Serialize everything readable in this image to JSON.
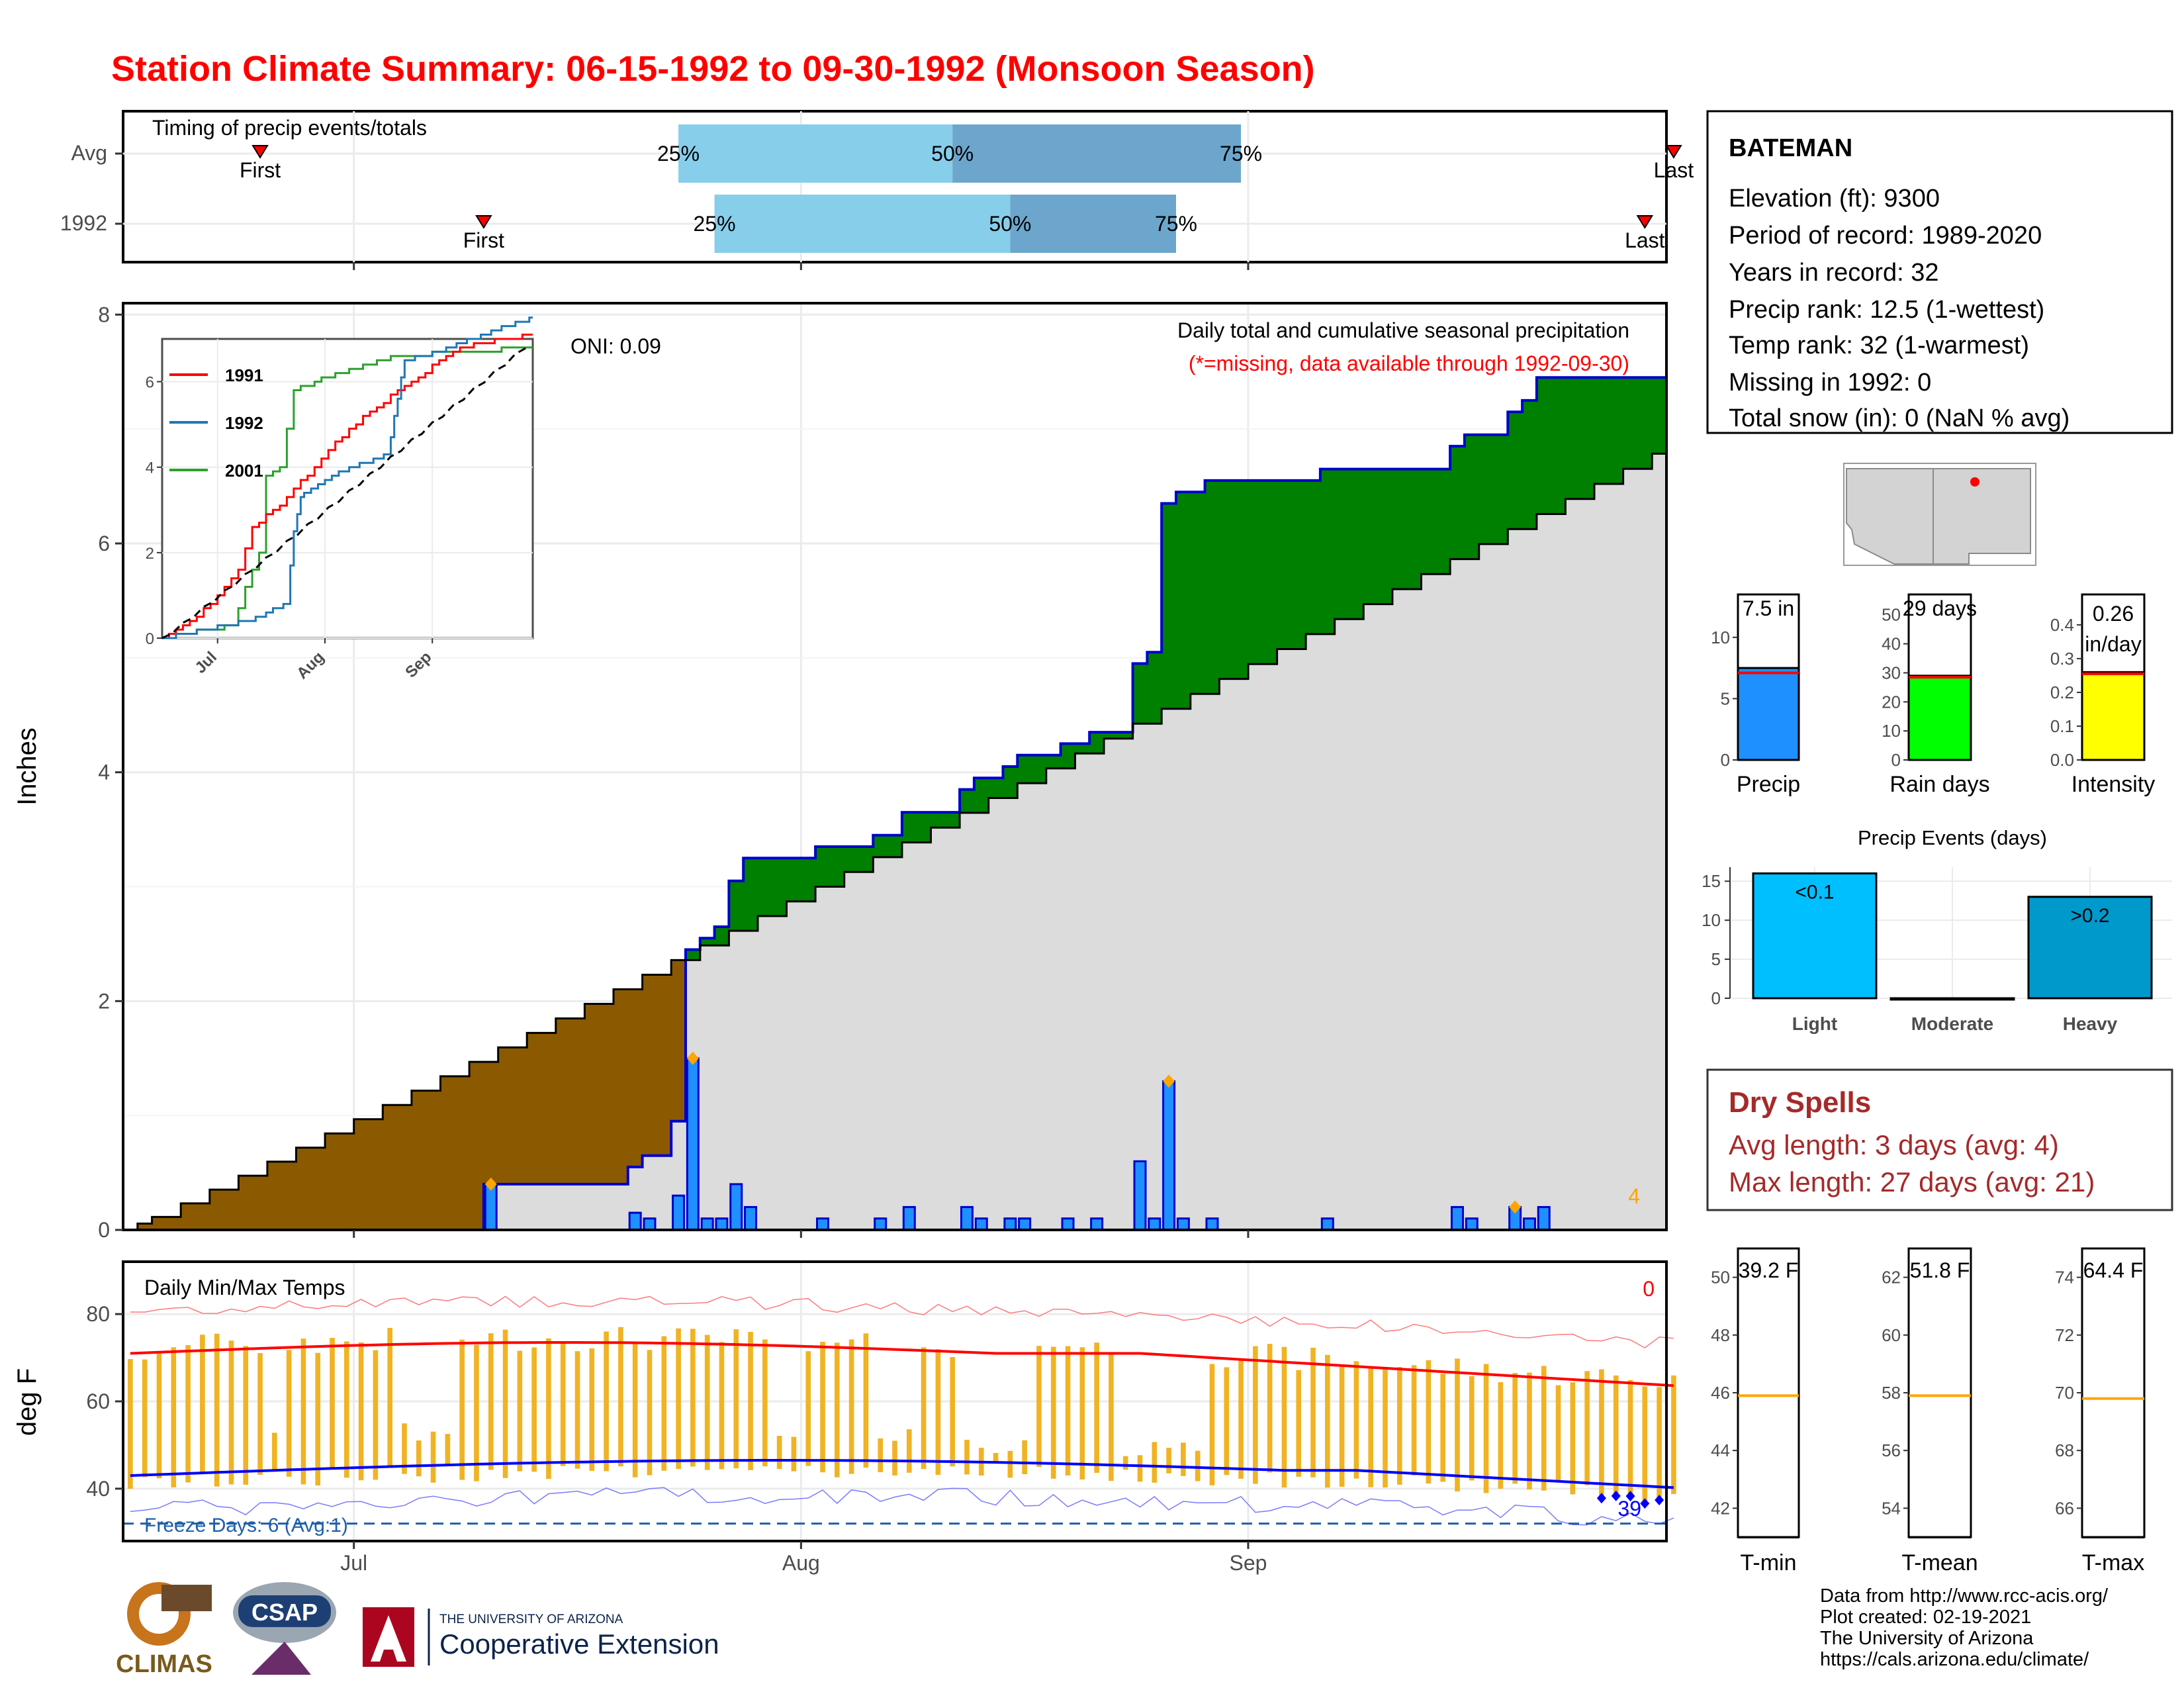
{
  "title": "Station Climate Summary: 06-15-1992 to 09-30-1992 (Monsoon Season)",
  "colors": {
    "title": "#ff0000",
    "precip_fill": "#1e90ff",
    "precip_line": "#0000cd",
    "surplus": "#008000",
    "deficit": "#8b5a00",
    "cumulative_avg": "#dcdcdc",
    "raindays": "#00ff00",
    "intensity": "#ffff00",
    "light": "#00bfff",
    "heavy": "#0099cc",
    "temp_bar": "#f0b323",
    "tmax": "#ff0000",
    "tmin": "#0000ff",
    "spell": "#a52a2a",
    "orange": "#ffa500"
  },
  "timing_panel": {
    "title": "Timing of precip events/totals",
    "rows": [
      {
        "label": "Avg",
        "first_label": "First",
        "last_label": "Last",
        "first_day": 9.5,
        "last_day": 107.5,
        "p25_day": 38.5,
        "p50_day": 57.5,
        "p75_day": 77.5,
        "p25": "25%",
        "p50": "50%",
        "p75": "75%"
      },
      {
        "label": "1992",
        "first_label": "First",
        "last_label": "Last",
        "first_day": 25,
        "last_day": 105.5,
        "p25_day": 41,
        "p50_day": 61.5,
        "p75_day": 73,
        "p25": "25%",
        "p50": "50%",
        "p75": "75%"
      }
    ]
  },
  "precip_panel": {
    "ylabel": "Inches",
    "yticks": [
      "0",
      "2",
      "4",
      "6",
      "8"
    ],
    "caption_line1": "Daily total and cumulative seasonal precipitation",
    "caption_line2": "(*=missing, data available through 1992-09-30)",
    "oni": "ONI: 0.09",
    "extreme_count": "4"
  },
  "inset": {
    "legend": [
      "1991",
      "1992",
      "2001"
    ],
    "legend_colors": [
      "#ff0000",
      "#1f77b4",
      "#2ca02c"
    ],
    "yticks": [
      "0",
      "2",
      "4",
      "6"
    ],
    "xticks": [
      "Jul",
      "Aug",
      "Sep"
    ]
  },
  "temp_panel": {
    "title": "Daily Min/Max Temps",
    "ylabel": "deg F",
    "yticks": [
      "40",
      "60",
      "80"
    ],
    "freeze": "Freeze Days: 6 (Avg:1)",
    "hot_count": "0",
    "cold_count": "39"
  },
  "x_axis": {
    "ticks": [
      "Jul",
      "Aug",
      "Sep"
    ]
  },
  "station": {
    "name": "BATEMAN",
    "lines": [
      "Elevation (ft): 9300",
      "Period of record: 1989-2020",
      "Years in record: 32",
      "Precip rank: 12.5 (1-wettest)",
      "Temp rank: 32 (1-warmest)",
      "Missing in 1992: 0",
      "Total snow (in): 0 (NaN % avg)"
    ]
  },
  "mini_bars": [
    {
      "label": "Precip",
      "value_text": "7.5 in",
      "value": 7.5,
      "avg": 7.1,
      "ymax": 13.5,
      "yticks": [
        "0",
        "5",
        "10"
      ],
      "tick_values": [
        0,
        5,
        10
      ]
    },
    {
      "label": "Rain days",
      "value_text": "29 days",
      "value": 29,
      "avg": 28.5,
      "ymax": 57,
      "yticks": [
        "0",
        "10",
        "20",
        "30",
        "40",
        "50"
      ],
      "tick_values": [
        0,
        10,
        20,
        30,
        40,
        50
      ]
    },
    {
      "label": "Intensity",
      "value_text": "0.26 in/day",
      "value_line1": "0.26",
      "value_line2": "in/day",
      "value": 0.26,
      "avg": 0.255,
      "ymax": 0.49,
      "yticks": [
        "0.0",
        "0.1",
        "0.2",
        "0.3",
        "0.4"
      ],
      "tick_values": [
        0,
        0.1,
        0.2,
        0.3,
        0.4
      ]
    }
  ],
  "precip_events": {
    "title": "Precip Events (days)",
    "categories": [
      "Light",
      "Moderate",
      "Heavy"
    ],
    "values": [
      16,
      0,
      13
    ],
    "bar_labels": [
      "<0.1",
      "",
      ">0.2"
    ],
    "yticks": [
      "0",
      "5",
      "10",
      "15"
    ]
  },
  "dry_spells": {
    "title": "Dry Spells",
    "avg_length": "Avg length: 3 days (avg: 4)",
    "max_length": "Max length: 27 days (avg: 21)"
  },
  "temp_bars": [
    {
      "label": "T-min",
      "value_text": "39.2 F",
      "value": 39.2,
      "avg": 45.9,
      "ymin": 41,
      "ymax": 51,
      "yticks": [
        "42",
        "44",
        "46",
        "48",
        "50"
      ],
      "tick_values": [
        42,
        44,
        46,
        48,
        50
      ]
    },
    {
      "label": "T-mean",
      "value_text": "51.8 F",
      "value": 51.8,
      "avg": 57.9,
      "ymin": 53,
      "ymax": 63,
      "yticks": [
        "54",
        "56",
        "58",
        "60",
        "62"
      ],
      "tick_values": [
        54,
        56,
        58,
        60,
        62
      ]
    },
    {
      "label": "T-max",
      "value_text": "64.4 F",
      "value": 64.4,
      "avg": 69.8,
      "ymin": 65,
      "ymax": 75,
      "yticks": [
        "66",
        "68",
        "70",
        "72",
        "74"
      ],
      "tick_values": [
        66,
        68,
        70,
        72,
        74
      ]
    }
  ],
  "footer": {
    "lines": [
      "Data from http://www.rcc-acis.org/",
      "Plot created: 02-19-2021",
      "The University of Arizona",
      "https://cals.arizona.edu/climate/"
    ],
    "climas": "CLIMAS",
    "csap": "CSAP",
    "ua_small": "THE UNIVERSITY OF ARIZONA",
    "ua_big": "Cooperative Extension"
  },
  "chart_data": {
    "type": "area",
    "title": "Daily total and cumulative seasonal precipitation",
    "ylabel": "Inches",
    "ylim": [
      0,
      8.1
    ],
    "x_range": [
      "1992-06-15",
      "1992-09-30"
    ],
    "daily_precip": [
      {
        "date": "1992-07-10",
        "value": 0.4
      },
      {
        "date": "1992-07-20",
        "value": 0.15
      },
      {
        "date": "1992-07-21",
        "value": 0.1
      },
      {
        "date": "1992-07-23",
        "value": 0.3
      },
      {
        "date": "1992-07-24",
        "value": 1.5
      },
      {
        "date": "1992-07-25",
        "value": 0.1
      },
      {
        "date": "1992-07-26",
        "value": 0.1
      },
      {
        "date": "1992-07-27",
        "value": 0.4
      },
      {
        "date": "1992-07-28",
        "value": 0.2
      },
      {
        "date": "1992-08-02",
        "value": 0.1
      },
      {
        "date": "1992-08-06",
        "value": 0.1
      },
      {
        "date": "1992-08-08",
        "value": 0.2
      },
      {
        "date": "1992-08-12",
        "value": 0.2
      },
      {
        "date": "1992-08-13",
        "value": 0.1
      },
      {
        "date": "1992-08-15",
        "value": 0.1
      },
      {
        "date": "1992-08-16",
        "value": 0.1
      },
      {
        "date": "1992-08-19",
        "value": 0.1
      },
      {
        "date": "1992-08-21",
        "value": 0.1
      },
      {
        "date": "1992-08-24",
        "value": 0.6
      },
      {
        "date": "1992-08-25",
        "value": 0.1
      },
      {
        "date": "1992-08-26",
        "value": 1.3
      },
      {
        "date": "1992-08-27",
        "value": 0.1
      },
      {
        "date": "1992-08-29",
        "value": 0.1
      },
      {
        "date": "1992-09-06",
        "value": 0.1
      },
      {
        "date": "1992-09-15",
        "value": 0.2
      },
      {
        "date": "1992-09-16",
        "value": 0.1
      },
      {
        "date": "1992-09-19",
        "value": 0.2
      },
      {
        "date": "1992-09-20",
        "value": 0.1
      },
      {
        "date": "1992-09-21",
        "value": 0.2
      }
    ],
    "cumulative_1992_end": 7.5,
    "cumulative_avg_end": 6.85,
    "extreme_days": [
      "1992-07-10",
      "1992-07-24",
      "1992-08-26",
      "1992-09-19"
    ]
  }
}
